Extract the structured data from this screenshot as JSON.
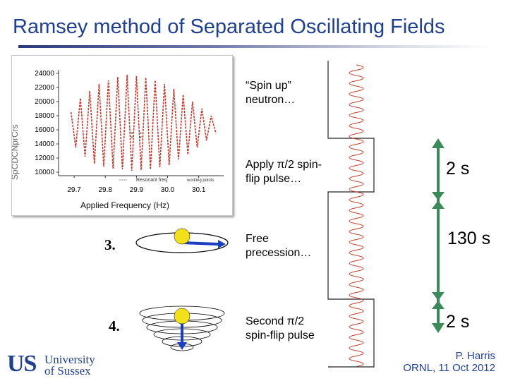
{
  "slide": {
    "title": "Ramsey method of Separated Oscillating Fields"
  },
  "steps": [
    {
      "number": "",
      "label_lines": [
        "“Spin up”",
        "neutron…"
      ]
    },
    {
      "number": "",
      "label_lines": [
        "Apply π/2 spin-",
        "flip pulse…"
      ]
    },
    {
      "number": "3.",
      "label_lines": [
        "Free",
        "precession…"
      ]
    },
    {
      "number": "4.",
      "label_lines": [
        "Second π/2",
        "spin-flip pulse"
      ]
    }
  ],
  "timings": [
    "2 s",
    "130 s",
    "2 s"
  ],
  "credit": {
    "name": "P. Harris",
    "place": "ORNL, 11 Oct 2012"
  },
  "logo": {
    "mark": "US",
    "line1": "University",
    "line2": "of Sussex"
  },
  "colors": {
    "title": "#1f3f8f",
    "arrow": "#3a8a5a",
    "curve": "#c0392b",
    "spin_arrow": "#1c3fbf",
    "spin_ball": "#f2e01a"
  },
  "chart_data": {
    "type": "line",
    "xlabel": "Applied Frequency (Hz)",
    "ylabel": "",
    "xticks": [
      "29.7",
      "29.8",
      "29.9",
      "30.0",
      "30.1"
    ],
    "yticks": [
      "24000",
      "22000",
      "20000",
      "18000",
      "16000",
      "14000",
      "12000",
      "10000"
    ],
    "xlim": [
      29.65,
      30.18
    ],
    "ylim": [
      9500,
      24500
    ],
    "series": [
      {
        "name": "",
        "x": [
          29.69,
          29.705,
          29.72,
          29.735,
          29.75,
          29.765,
          29.78,
          29.795,
          29.81,
          29.825,
          29.84,
          29.855,
          29.87,
          29.885,
          29.9,
          29.915,
          29.93,
          29.945,
          29.96,
          29.975,
          29.99,
          30.005,
          30.02,
          30.035,
          30.05,
          30.065,
          30.08,
          30.095,
          30.11,
          30.125,
          30.14,
          30.155
        ],
        "y": [
          18500,
          13500,
          20500,
          12200,
          21500,
          11200,
          22500,
          10800,
          23000,
          10500,
          23500,
          10400,
          23800,
          10200,
          23600,
          10300,
          23400,
          10400,
          23000,
          10700,
          22500,
          11000,
          21800,
          11800,
          21000,
          12500,
          20000,
          13500,
          19000,
          14500,
          18000,
          15500
        ]
      }
    ],
    "legend": [
      "Resonant freq",
      "working points"
    ],
    "grid": false
  }
}
